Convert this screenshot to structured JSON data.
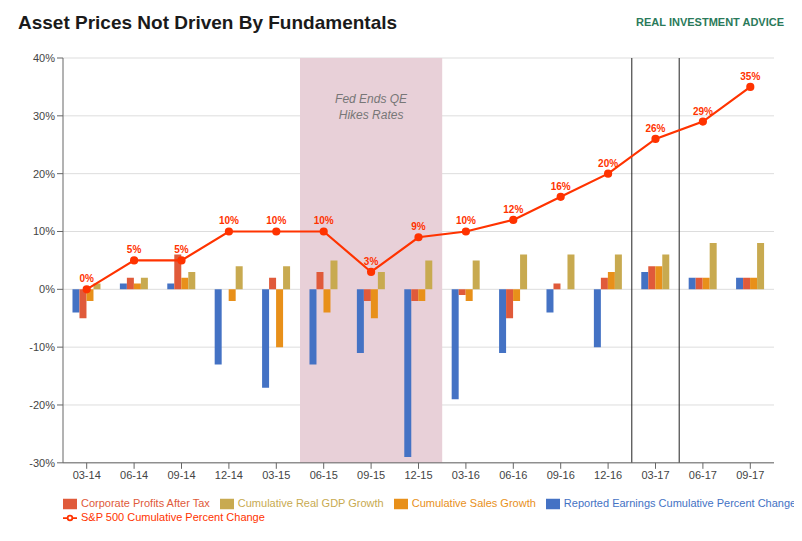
{
  "chart_data": {
    "type": "bar",
    "title": "Asset Prices Not Driven By Fundamentals",
    "categories": [
      "03-14",
      "06-14",
      "09-14",
      "12-14",
      "03-15",
      "06-15",
      "09-15",
      "12-15",
      "03-16",
      "06-16",
      "09-16",
      "12-16",
      "03-17",
      "06-17",
      "09-17"
    ],
    "series": [
      {
        "name": "Reported Earnings Cumulative Percent Change",
        "type": "bar",
        "color": "#4472c4",
        "values": [
          -4,
          1,
          1,
          -13,
          -17,
          -13,
          -11,
          -29,
          -19,
          -11,
          -4,
          -10,
          3,
          2,
          2
        ]
      },
      {
        "name": "Corporate Profits After Tax",
        "type": "bar",
        "color": "#e05a3a",
        "values": [
          -5,
          2,
          6,
          0,
          2,
          3,
          -2,
          -2,
          -1,
          -5,
          1,
          2,
          4,
          2,
          2
        ]
      },
      {
        "name": "Cumulative Sales Growth",
        "type": "bar",
        "color": "#e8901a",
        "values": [
          -2,
          1,
          2,
          -2,
          -10,
          -4,
          -5,
          -2,
          -2,
          -2,
          0,
          3,
          4,
          2,
          2
        ]
      },
      {
        "name": "Cumulative Real GDP Growth",
        "type": "bar",
        "color": "#c8aa50",
        "values": [
          1,
          2,
          3,
          4,
          4,
          5,
          3,
          5,
          5,
          6,
          6,
          6,
          6,
          8,
          8
        ]
      },
      {
        "name": "S&P 500 Cumulative Percent Change",
        "type": "line",
        "color": "#ff3300",
        "marker": "o",
        "data_labels": true,
        "values": [
          0,
          5,
          5,
          10,
          10,
          10,
          3,
          9,
          10,
          12,
          16,
          20,
          26,
          29,
          35
        ],
        "value_labels": [
          "0%",
          "5%",
          "5%",
          "10%",
          "10%",
          "10%",
          "3%",
          "9%",
          "10%",
          "12%",
          "16%",
          "20%",
          "26%",
          "29%",
          "35%"
        ]
      }
    ],
    "ylim": [
      -30,
      40
    ],
    "yticks": [
      {
        "value": -30,
        "label": "-30%"
      },
      {
        "value": -20,
        "label": "-20%"
      },
      {
        "value": -10,
        "label": "-10%"
      },
      {
        "value": 0,
        "label": "0%"
      },
      {
        "value": 10,
        "label": "10%"
      },
      {
        "value": 20,
        "label": "20%"
      },
      {
        "value": 30,
        "label": "30%"
      },
      {
        "value": 40,
        "label": "40%"
      }
    ],
    "grid": true,
    "legend": "bottom",
    "shaded": {
      "from": "06-15",
      "to": "12-15",
      "color": "#e8d0d8"
    },
    "vlines_after": [
      "12-16",
      "03-17"
    ],
    "annotations": [
      {
        "text": "Fed Ends QE\nHikes Rates",
        "x": "09-15",
        "y": 34
      },
      {
        "text": "REAL INVESTMENT ADVICE"
      }
    ]
  }
}
